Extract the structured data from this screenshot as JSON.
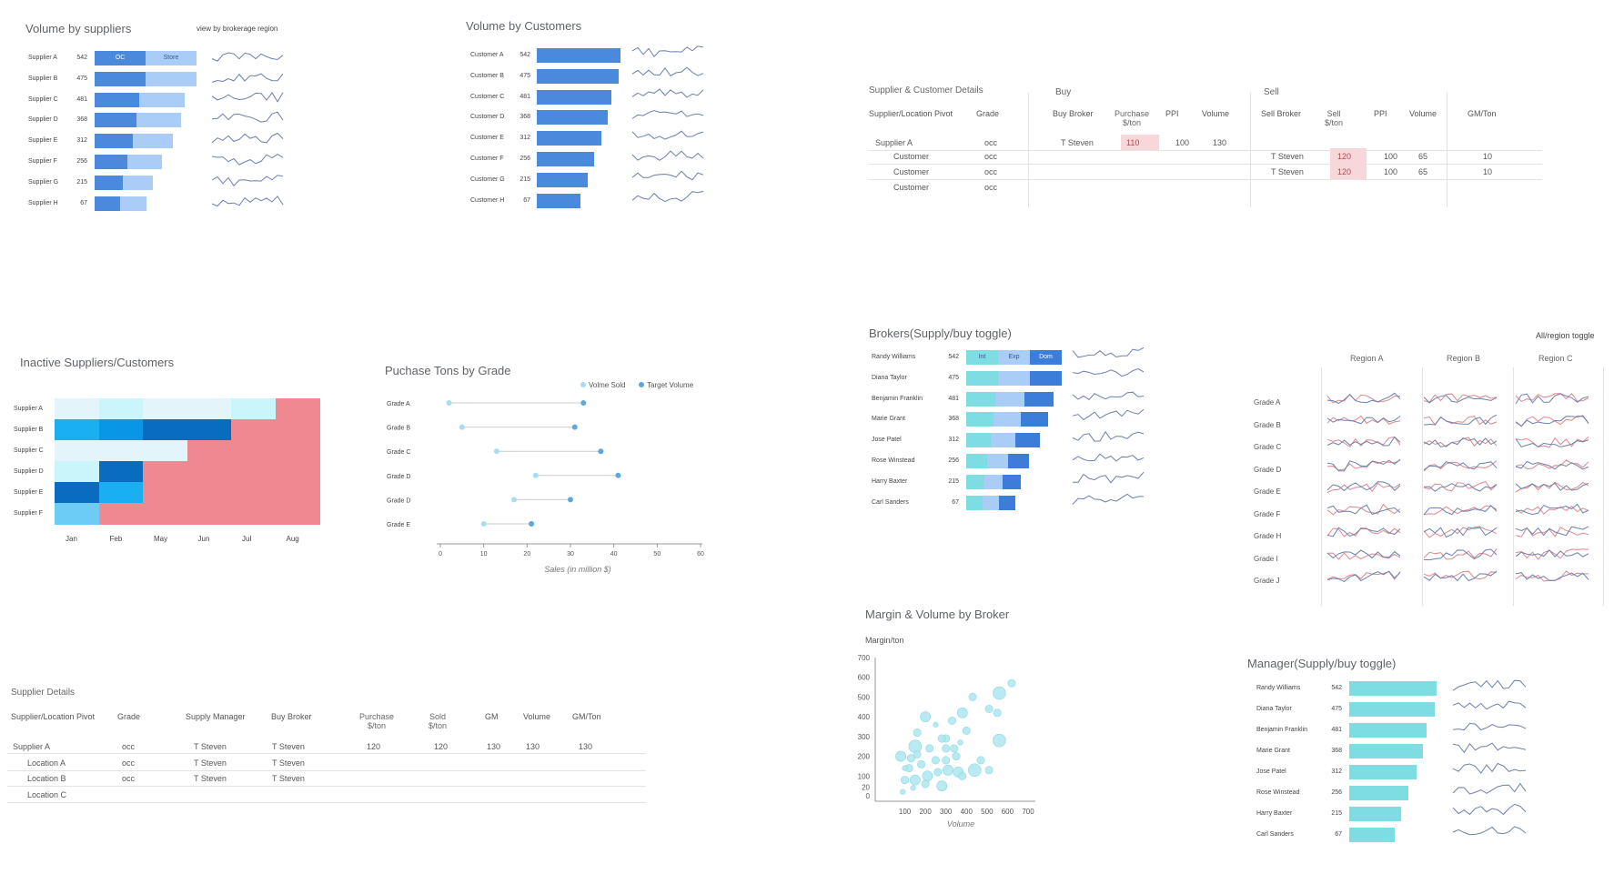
{
  "colors": {
    "blue_dark": "#4a89dc",
    "blue_light": "#a9cdf6",
    "teal": "#7ddde3",
    "grid_line": "#e3e3e3",
    "pink_cell": "#f8d7da",
    "sparkline": "#6a7fb0",
    "sparkline_red": "#e0868d",
    "heat_pink": "#f08891"
  },
  "suppliers_panel": {
    "title": "Volume by suppliers",
    "link": "view by brokerage region",
    "bar_label_oc": "OC",
    "bar_label_store": "Store",
    "rows": [
      {
        "name": "Supplier A",
        "value": 542,
        "dark": 542,
        "light": 542
      },
      {
        "name": "Supplier B",
        "value": 475,
        "dark": 542,
        "light": 542
      },
      {
        "name": "Supplier C",
        "value": 481,
        "dark": 475,
        "light": 481
      },
      {
        "name": "Supplier D",
        "value": 368,
        "dark": 450,
        "light": 468
      },
      {
        "name": "Supplier E",
        "value": 312,
        "dark": 410,
        "light": 420
      },
      {
        "name": "Supplier F",
        "value": 256,
        "dark": 350,
        "light": 370
      },
      {
        "name": "Supplier G",
        "value": 215,
        "dark": 300,
        "light": 320
      },
      {
        "name": "Supplier H",
        "value": 67,
        "dark": 270,
        "light": 280
      }
    ]
  },
  "customers_panel": {
    "title": "Volume by Customers",
    "rows": [
      {
        "name": "Customer A",
        "value": 542
      },
      {
        "name": "Customer B",
        "value": 475
      },
      {
        "name": "Customer C",
        "value": 481
      },
      {
        "name": "Customer D",
        "value": 368
      },
      {
        "name": "Customer E",
        "value": 312
      },
      {
        "name": "Customer F",
        "value": 256
      },
      {
        "name": "Customer G",
        "value": 215
      },
      {
        "name": "Customer H",
        "value": 67
      }
    ]
  },
  "sc_details": {
    "title": "Supplier & Customer Details",
    "buy_label": "Buy",
    "sell_label": "Sell",
    "headers": {
      "pivot": "Supplier/Location Pivot",
      "grade": "Grade",
      "buy_broker": "Buy Broker",
      "purchase": "Purchase $/ton",
      "ppi": "PPI",
      "volume": "Volume",
      "sell_broker": "Sell Broker",
      "sell": "Sell $/ton",
      "ppi2": "PPI",
      "volume2": "Volume",
      "gmton": "GM/Ton"
    },
    "rows": [
      {
        "pivot": "Supplier A",
        "grade": "occ",
        "buy_broker": "T Steven",
        "purchase": "110",
        "ppi": "100",
        "volume": "130",
        "sell_broker": "",
        "sell": "",
        "ppi2": "",
        "volume2": "",
        "gmton": ""
      },
      {
        "pivot": "Customer",
        "grade": "occ",
        "buy_broker": "",
        "purchase": "",
        "ppi": "",
        "volume": "",
        "sell_broker": "T Steven",
        "sell": "120",
        "ppi2": "100",
        "volume2": "65",
        "gmton": "10"
      },
      {
        "pivot": "Customer",
        "grade": "occ",
        "buy_broker": "",
        "purchase": "",
        "ppi": "",
        "volume": "",
        "sell_broker": "T Steven",
        "sell": "120",
        "ppi2": "100",
        "volume2": "65",
        "gmton": "10"
      },
      {
        "pivot": "Customer",
        "grade": "occ",
        "buy_broker": "",
        "purchase": "",
        "ppi": "",
        "volume": "",
        "sell_broker": "",
        "sell": "",
        "ppi2": "",
        "volume2": "",
        "gmton": ""
      }
    ]
  },
  "inactive_panel": {
    "title": "Inactive Suppliers/Customers",
    "rows": [
      "Supplier A",
      "Supplier B",
      "Supplier C",
      "Supplier D",
      "Supplier E",
      "Supplier F"
    ],
    "cols": [
      "Jan",
      "Feb",
      "May",
      "Jun",
      "Jul",
      "Aug"
    ],
    "cells": [
      [
        "#e4f4fb",
        "#c9f5fb",
        "#e4f4fb",
        "#e4f4fb",
        "#c9f5fb",
        "#f08891"
      ],
      [
        "#19aff0",
        "#0a96e6",
        "#0a6cbf",
        "#0a6cbf",
        "#f08891",
        "#f08891"
      ],
      [
        "#e4f4fb",
        "#e4f4fb",
        "#e4f4fb",
        "#f08891",
        "#f08891",
        "#f08891"
      ],
      [
        "#c9f5fb",
        "#0a6cbf",
        "#f08891",
        "#f08891",
        "#f08891",
        "#f08891"
      ],
      [
        "#0a6cbf",
        "#19aff0",
        "#f08891",
        "#f08891",
        "#f08891",
        "#f08891"
      ],
      [
        "#6cccf5",
        "#f08891",
        "#f08891",
        "#f08891",
        "#f08891",
        "#f08891"
      ]
    ]
  },
  "grade_panel": {
    "title": "Puchase Tons by Grade",
    "legend_sold": "Volme Sold",
    "legend_target": "Target Volume",
    "xlabel": "Sales (in million $)",
    "xticks": [
      0,
      10,
      20,
      30,
      40,
      50,
      60
    ],
    "rows": [
      {
        "name": "Grade A",
        "sold": 2,
        "target": 33
      },
      {
        "name": "Grade B",
        "sold": 5,
        "target": 31
      },
      {
        "name": "Grade C",
        "sold": 13,
        "target": 37
      },
      {
        "name": "Grade D",
        "sold": 22,
        "target": 41
      },
      {
        "name": "Grade D",
        "sold": 17,
        "target": 30
      },
      {
        "name": "Grade E",
        "sold": 10,
        "target": 21
      }
    ]
  },
  "brokers_panel": {
    "title": "Brokers(Supply/buy toggle)",
    "seg_labels": [
      "Int",
      "Exp",
      "Dom"
    ],
    "seg_colors": [
      "#7ddde3",
      "#a9cdf6",
      "#3b7dd8"
    ],
    "rows": [
      {
        "name": "Randy Williams",
        "value": 542,
        "segs": [
          35,
          35,
          35
        ]
      },
      {
        "name": "Diana Taylor",
        "value": 475,
        "segs": [
          35,
          35,
          35
        ]
      },
      {
        "name": "Benjamin Franklin",
        "value": 481,
        "segs": [
          32,
          32,
          32
        ]
      },
      {
        "name": "Marie Grant",
        "value": 368,
        "segs": [
          30,
          30,
          30
        ]
      },
      {
        "name": "Jose Patel",
        "value": 312,
        "segs": [
          27,
          27,
          27
        ]
      },
      {
        "name": "Rose Winstead",
        "value": 256,
        "segs": [
          23,
          23,
          23
        ]
      },
      {
        "name": "Harry Baxter",
        "value": 215,
        "segs": [
          20,
          20,
          20
        ]
      },
      {
        "name": "Carl Sanders",
        "value": 67,
        "segs": [
          18,
          18,
          18
        ]
      }
    ]
  },
  "region_panel": {
    "toggle": "All/region toggle",
    "regions": [
      "Region A",
      "Region B",
      "Region C"
    ],
    "grades": [
      "Grade A",
      "Grade B",
      "Grade C",
      "Grade D",
      "Grade E",
      "Grade F",
      "Grade H",
      "Grade I",
      "Grade J"
    ]
  },
  "supplier_details": {
    "title": "Supplier Details",
    "headers": {
      "pivot": "Supplier/Location Pivot",
      "grade": "Grade",
      "manager": "Supply Manager",
      "broker": "Buy Broker",
      "purchase": "Purchase $/ton",
      "sold": "Sold $/ton",
      "gm": "GM",
      "volume": "Volume",
      "gmton": "GM/Ton"
    },
    "rows": [
      {
        "pivot": "Supplier A",
        "grade": "occ",
        "manager": "T Steven",
        "broker": "T Steven",
        "purchase": "120",
        "sold": "120",
        "gm": "130",
        "volume": "130",
        "gmton": "130"
      },
      {
        "pivot": "Location A",
        "grade": "occ",
        "manager": "T Steven",
        "broker": "T Steven",
        "purchase": "",
        "sold": "",
        "gm": "",
        "volume": "",
        "gmton": ""
      },
      {
        "pivot": "Location B",
        "grade": "occ",
        "manager": "T Steven",
        "broker": "T Steven",
        "purchase": "",
        "sold": "",
        "gm": "",
        "volume": "",
        "gmton": ""
      },
      {
        "pivot": "Location  C",
        "grade": "",
        "manager": "",
        "broker": "",
        "purchase": "",
        "sold": "",
        "gm": "",
        "volume": "",
        "gmton": ""
      }
    ]
  },
  "bubble_panel": {
    "title": "Margin & Volume by Broker",
    "ylabel": "Margin/ton",
    "xlabel": "Volume",
    "yticks": [
      0,
      100,
      200,
      300,
      400,
      500,
      600,
      700
    ],
    "yticks_extra": [
      20
    ],
    "xticks": [
      100,
      200,
      300,
      400,
      500,
      600,
      700
    ],
    "points": [
      [
        620,
        570,
        3
      ],
      [
        560,
        520,
        5
      ],
      [
        550,
        420,
        3
      ],
      [
        560,
        280,
        5
      ],
      [
        510,
        130,
        3
      ],
      [
        440,
        130,
        5
      ],
      [
        360,
        120,
        4
      ],
      [
        310,
        130,
        4
      ],
      [
        280,
        50,
        4
      ],
      [
        210,
        100,
        4
      ],
      [
        150,
        80,
        4
      ],
      [
        100,
        80,
        3
      ],
      [
        80,
        200,
        4
      ],
      [
        150,
        250,
        5
      ],
      [
        160,
        320,
        3
      ],
      [
        200,
        400,
        4
      ],
      [
        250,
        360,
        2
      ],
      [
        300,
        290,
        3
      ],
      [
        330,
        380,
        3
      ],
      [
        380,
        420,
        4
      ],
      [
        400,
        330,
        3
      ],
      [
        350,
        200,
        3
      ],
      [
        340,
        240,
        3
      ],
      [
        300,
        180,
        3
      ],
      [
        220,
        240,
        3
      ],
      [
        130,
        190,
        3
      ],
      [
        120,
        140,
        3
      ],
      [
        90,
        20,
        2
      ],
      [
        180,
        160,
        3
      ],
      [
        250,
        180,
        3
      ],
      [
        260,
        120,
        3
      ],
      [
        200,
        60,
        3
      ],
      [
        140,
        40,
        2
      ],
      [
        370,
        270,
        2
      ],
      [
        430,
        500,
        3
      ],
      [
        510,
        440,
        3
      ],
      [
        470,
        180,
        3
      ],
      [
        380,
        100,
        3
      ],
      [
        160,
        210,
        3
      ],
      [
        300,
        240,
        3
      ],
      [
        280,
        290,
        3
      ],
      [
        100,
        140,
        2
      ]
    ]
  },
  "manager_panel": {
    "title": "Manager(Supply/buy toggle)",
    "rows": [
      {
        "name": "Randy Williams",
        "value": 542
      },
      {
        "name": "Diana Taylor",
        "value": 475
      },
      {
        "name": "Benjamin Franklin",
        "value": 481
      },
      {
        "name": "Marie Grant",
        "value": 368
      },
      {
        "name": "Jose Patel",
        "value": 312
      },
      {
        "name": "Rose Winstead",
        "value": 256
      },
      {
        "name": "Harry Baxter",
        "value": 215
      },
      {
        "name": "Carl Sanders",
        "value": 67
      }
    ]
  },
  "chart_data": [
    {
      "type": "bar",
      "title": "Volume by suppliers",
      "categories": [
        "Supplier A",
        "Supplier B",
        "Supplier C",
        "Supplier D",
        "Supplier E",
        "Supplier F",
        "Supplier G",
        "Supplier H"
      ],
      "values": [
        542,
        475,
        481,
        368,
        312,
        256,
        215,
        67
      ]
    },
    {
      "type": "bar",
      "title": "Volume by Customers",
      "categories": [
        "Customer A",
        "Customer B",
        "Customer C",
        "Customer D",
        "Customer E",
        "Customer F",
        "Customer G",
        "Customer H"
      ],
      "values": [
        542,
        475,
        481,
        368,
        312,
        256,
        215,
        67
      ]
    },
    {
      "type": "heatmap",
      "title": "Inactive Suppliers/Customers",
      "rows": [
        "Supplier A",
        "Supplier B",
        "Supplier C",
        "Supplier D",
        "Supplier E",
        "Supplier F"
      ],
      "cols": [
        "Jan",
        "Feb",
        "May",
        "Jun",
        "Jul",
        "Aug"
      ]
    },
    {
      "type": "scatter",
      "title": "Puchase Tons by Grade",
      "xlabel": "Sales (in million $)",
      "xlim": [
        0,
        60
      ],
      "series": [
        {
          "name": "Volme Sold",
          "values": [
            2,
            5,
            13,
            22,
            17,
            10
          ]
        },
        {
          "name": "Target Volume",
          "values": [
            33,
            31,
            37,
            41,
            30,
            21
          ]
        }
      ],
      "categories": [
        "Grade A",
        "Grade B",
        "Grade C",
        "Grade D",
        "Grade D",
        "Grade E"
      ]
    },
    {
      "type": "bar",
      "title": "Brokers(Supply/buy toggle)",
      "categories": [
        "Randy Williams",
        "Diana Taylor",
        "Benjamin Franklin",
        "Marie Grant",
        "Jose Patel",
        "Rose Winstead",
        "Harry Baxter",
        "Carl Sanders"
      ],
      "values": [
        542,
        475,
        481,
        368,
        312,
        256,
        215,
        67
      ]
    },
    {
      "type": "scatter",
      "title": "Margin & Volume by Broker",
      "xlabel": "Volume",
      "ylabel": "Margin/ton",
      "xlim": [
        0,
        700
      ],
      "ylim": [
        0,
        700
      ]
    },
    {
      "type": "bar",
      "title": "Manager(Supply/buy toggle)",
      "categories": [
        "Randy Williams",
        "Diana Taylor",
        "Benjamin Franklin",
        "Marie Grant",
        "Jose Patel",
        "Rose Winstead",
        "Harry Baxter",
        "Carl Sanders"
      ],
      "values": [
        542,
        475,
        481,
        368,
        312,
        256,
        215,
        67
      ]
    }
  ]
}
